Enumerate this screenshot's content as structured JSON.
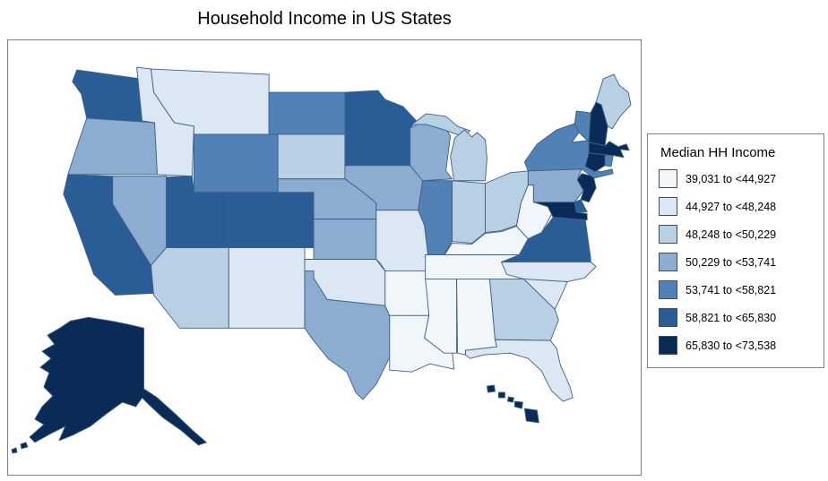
{
  "title": "Household Income in US States",
  "legend": {
    "title": "Median HH Income"
  },
  "chart_data": {
    "type": "choropleth",
    "title": "Household Income in US States",
    "legend_title": "Median HH Income",
    "unit": "USD",
    "bins": [
      {
        "label": "39,031 to <44,927",
        "min": 39031,
        "max": 44927,
        "color": "#f1f6fb"
      },
      {
        "label": "44,927 to <48,248",
        "min": 44927,
        "max": 48248,
        "color": "#dbe7f3"
      },
      {
        "label": "48,248 to <50,229",
        "min": 48248,
        "max": 50229,
        "color": "#b9cfe4"
      },
      {
        "label": "50,229 to <53,741",
        "min": 50229,
        "max": 53741,
        "color": "#8cadd1"
      },
      {
        "label": "53,741 to <58,821",
        "min": 53741,
        "max": 58821,
        "color": "#5181b5"
      },
      {
        "label": "58,821 to <65,830",
        "min": 58821,
        "max": 65830,
        "color": "#2a5d96"
      },
      {
        "label": "65,830 to <73,538",
        "min": 65830,
        "max": 73538,
        "color": "#0b2b57"
      }
    ],
    "states": [
      {
        "abbr": "AL",
        "name": "Alabama",
        "class": 1
      },
      {
        "abbr": "AK",
        "name": "Alaska",
        "class": 7
      },
      {
        "abbr": "AZ",
        "name": "Arizona",
        "class": 3
      },
      {
        "abbr": "AR",
        "name": "Arkansas",
        "class": 1
      },
      {
        "abbr": "CA",
        "name": "California",
        "class": 6
      },
      {
        "abbr": "CO",
        "name": "Colorado",
        "class": 6
      },
      {
        "abbr": "CT",
        "name": "Connecticut",
        "class": 7
      },
      {
        "abbr": "DE",
        "name": "Delaware",
        "class": 6
      },
      {
        "abbr": "FL",
        "name": "Florida",
        "class": 2
      },
      {
        "abbr": "GA",
        "name": "Georgia",
        "class": 3
      },
      {
        "abbr": "HI",
        "name": "Hawaii",
        "class": 7
      },
      {
        "abbr": "ID",
        "name": "Idaho",
        "class": 2
      },
      {
        "abbr": "IL",
        "name": "Illinois",
        "class": 5
      },
      {
        "abbr": "IN",
        "name": "Indiana",
        "class": 3
      },
      {
        "abbr": "IA",
        "name": "Iowa",
        "class": 4
      },
      {
        "abbr": "KS",
        "name": "Kansas",
        "class": 4
      },
      {
        "abbr": "KY",
        "name": "Kentucky",
        "class": 1
      },
      {
        "abbr": "LA",
        "name": "Louisiana",
        "class": 1
      },
      {
        "abbr": "ME",
        "name": "Maine",
        "class": 3
      },
      {
        "abbr": "MD",
        "name": "Maryland",
        "class": 7
      },
      {
        "abbr": "MA",
        "name": "Massachusetts",
        "class": 7
      },
      {
        "abbr": "MI",
        "name": "Michigan",
        "class": 3
      },
      {
        "abbr": "MN",
        "name": "Minnesota",
        "class": 6
      },
      {
        "abbr": "MS",
        "name": "Mississippi",
        "class": 1
      },
      {
        "abbr": "MO",
        "name": "Missouri",
        "class": 2
      },
      {
        "abbr": "MT",
        "name": "Montana",
        "class": 2
      },
      {
        "abbr": "NE",
        "name": "Nebraska",
        "class": 4
      },
      {
        "abbr": "NV",
        "name": "Nevada",
        "class": 4
      },
      {
        "abbr": "NH",
        "name": "New Hampshire",
        "class": 7
      },
      {
        "abbr": "NJ",
        "name": "New Jersey",
        "class": 7
      },
      {
        "abbr": "NM",
        "name": "New Mexico",
        "class": 2
      },
      {
        "abbr": "NY",
        "name": "New York",
        "class": 5
      },
      {
        "abbr": "NC",
        "name": "North Carolina",
        "class": 2
      },
      {
        "abbr": "ND",
        "name": "North Dakota",
        "class": 5
      },
      {
        "abbr": "OH",
        "name": "Ohio",
        "class": 3
      },
      {
        "abbr": "OK",
        "name": "Oklahoma",
        "class": 2
      },
      {
        "abbr": "OR",
        "name": "Oregon",
        "class": 4
      },
      {
        "abbr": "PA",
        "name": "Pennsylvania",
        "class": 4
      },
      {
        "abbr": "RI",
        "name": "Rhode Island",
        "class": 5
      },
      {
        "abbr": "SC",
        "name": "South Carolina",
        "class": 2
      },
      {
        "abbr": "SD",
        "name": "South Dakota",
        "class": 3
      },
      {
        "abbr": "TN",
        "name": "Tennessee",
        "class": 1
      },
      {
        "abbr": "TX",
        "name": "Texas",
        "class": 4
      },
      {
        "abbr": "UT",
        "name": "Utah",
        "class": 6
      },
      {
        "abbr": "VT",
        "name": "Vermont",
        "class": 5
      },
      {
        "abbr": "VA",
        "name": "Virginia",
        "class": 6
      },
      {
        "abbr": "WA",
        "name": "Washington",
        "class": 6
      },
      {
        "abbr": "WV",
        "name": "West Virginia",
        "class": 1
      },
      {
        "abbr": "WI",
        "name": "Wisconsin",
        "class": 4
      },
      {
        "abbr": "WY",
        "name": "Wyoming",
        "class": 5
      }
    ]
  }
}
